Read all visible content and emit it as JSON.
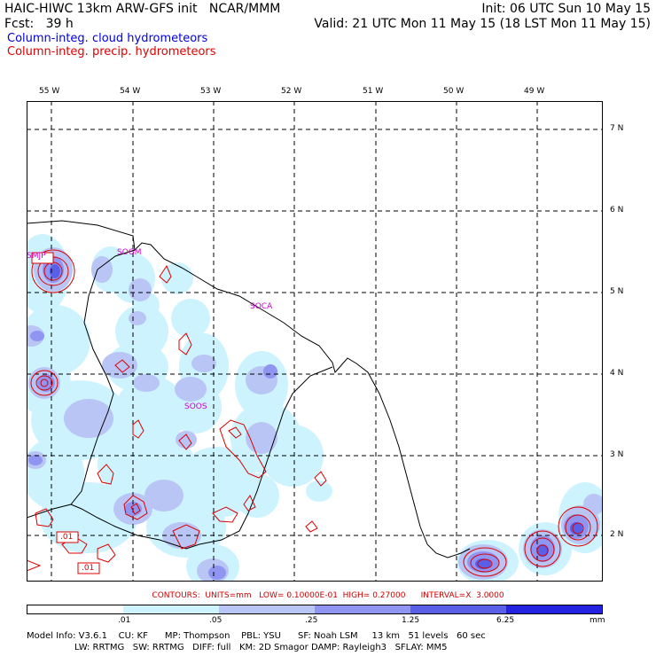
{
  "header": {
    "line1_left": "HAIC-HIWC 13km ARW-GFS init   NCAR/MMM",
    "line1_right": "Init: 06 UTC Sun 10 May 15",
    "line2_left": "Fcst:   39 h",
    "line2_right": "Valid: 21 UTC Mon 11 May 15 (18 LST Mon 11 May 15)"
  },
  "legend": {
    "cloud": "Column-integ. cloud hydrometeors",
    "cloud_color": "#0000dd",
    "precip": "Column-integ. precip. hydrometeors",
    "precip_color": "#dd0000"
  },
  "axes": {
    "lon_labels": [
      "55 W",
      "54 W",
      "53 W",
      "52 W",
      "51 W",
      "50 W",
      "49 W"
    ],
    "lat_labels": [
      "7 N",
      "6 N",
      "5 N",
      "4 N",
      "3 N",
      "2 N"
    ]
  },
  "stations": [
    "SMJP",
    "SOGM",
    "SOCA",
    "SOOS"
  ],
  "contour_labels": [
    ".01",
    ".01"
  ],
  "contours_info": "CONTOURS:  UNITS=mm   LOW= 0.10000E-01  HIGH= 0.27000      INTERVAL=X  3.0000",
  "colorbar": {
    "labels": [
      ".01",
      ".05",
      ".25",
      "1.25",
      "6.25",
      "mm"
    ],
    "colors": [
      "#ffffff",
      "#cdf3ff",
      "#b9c5f5",
      "#8f95f0",
      "#5a5fe8",
      "#2222e0"
    ]
  },
  "footer": {
    "line1": "Model Info: V3.6.1    CU: KF      MP: Thompson    PBL: YSU      SF: Noah LSM     13 km   51 levels   60 sec",
    "line2": "                 LW: RRTMG   SW: RRTMG   DIFF: full   KM: 2D Smagor DAMP: Rayleigh3   SFLAY: MM5"
  }
}
